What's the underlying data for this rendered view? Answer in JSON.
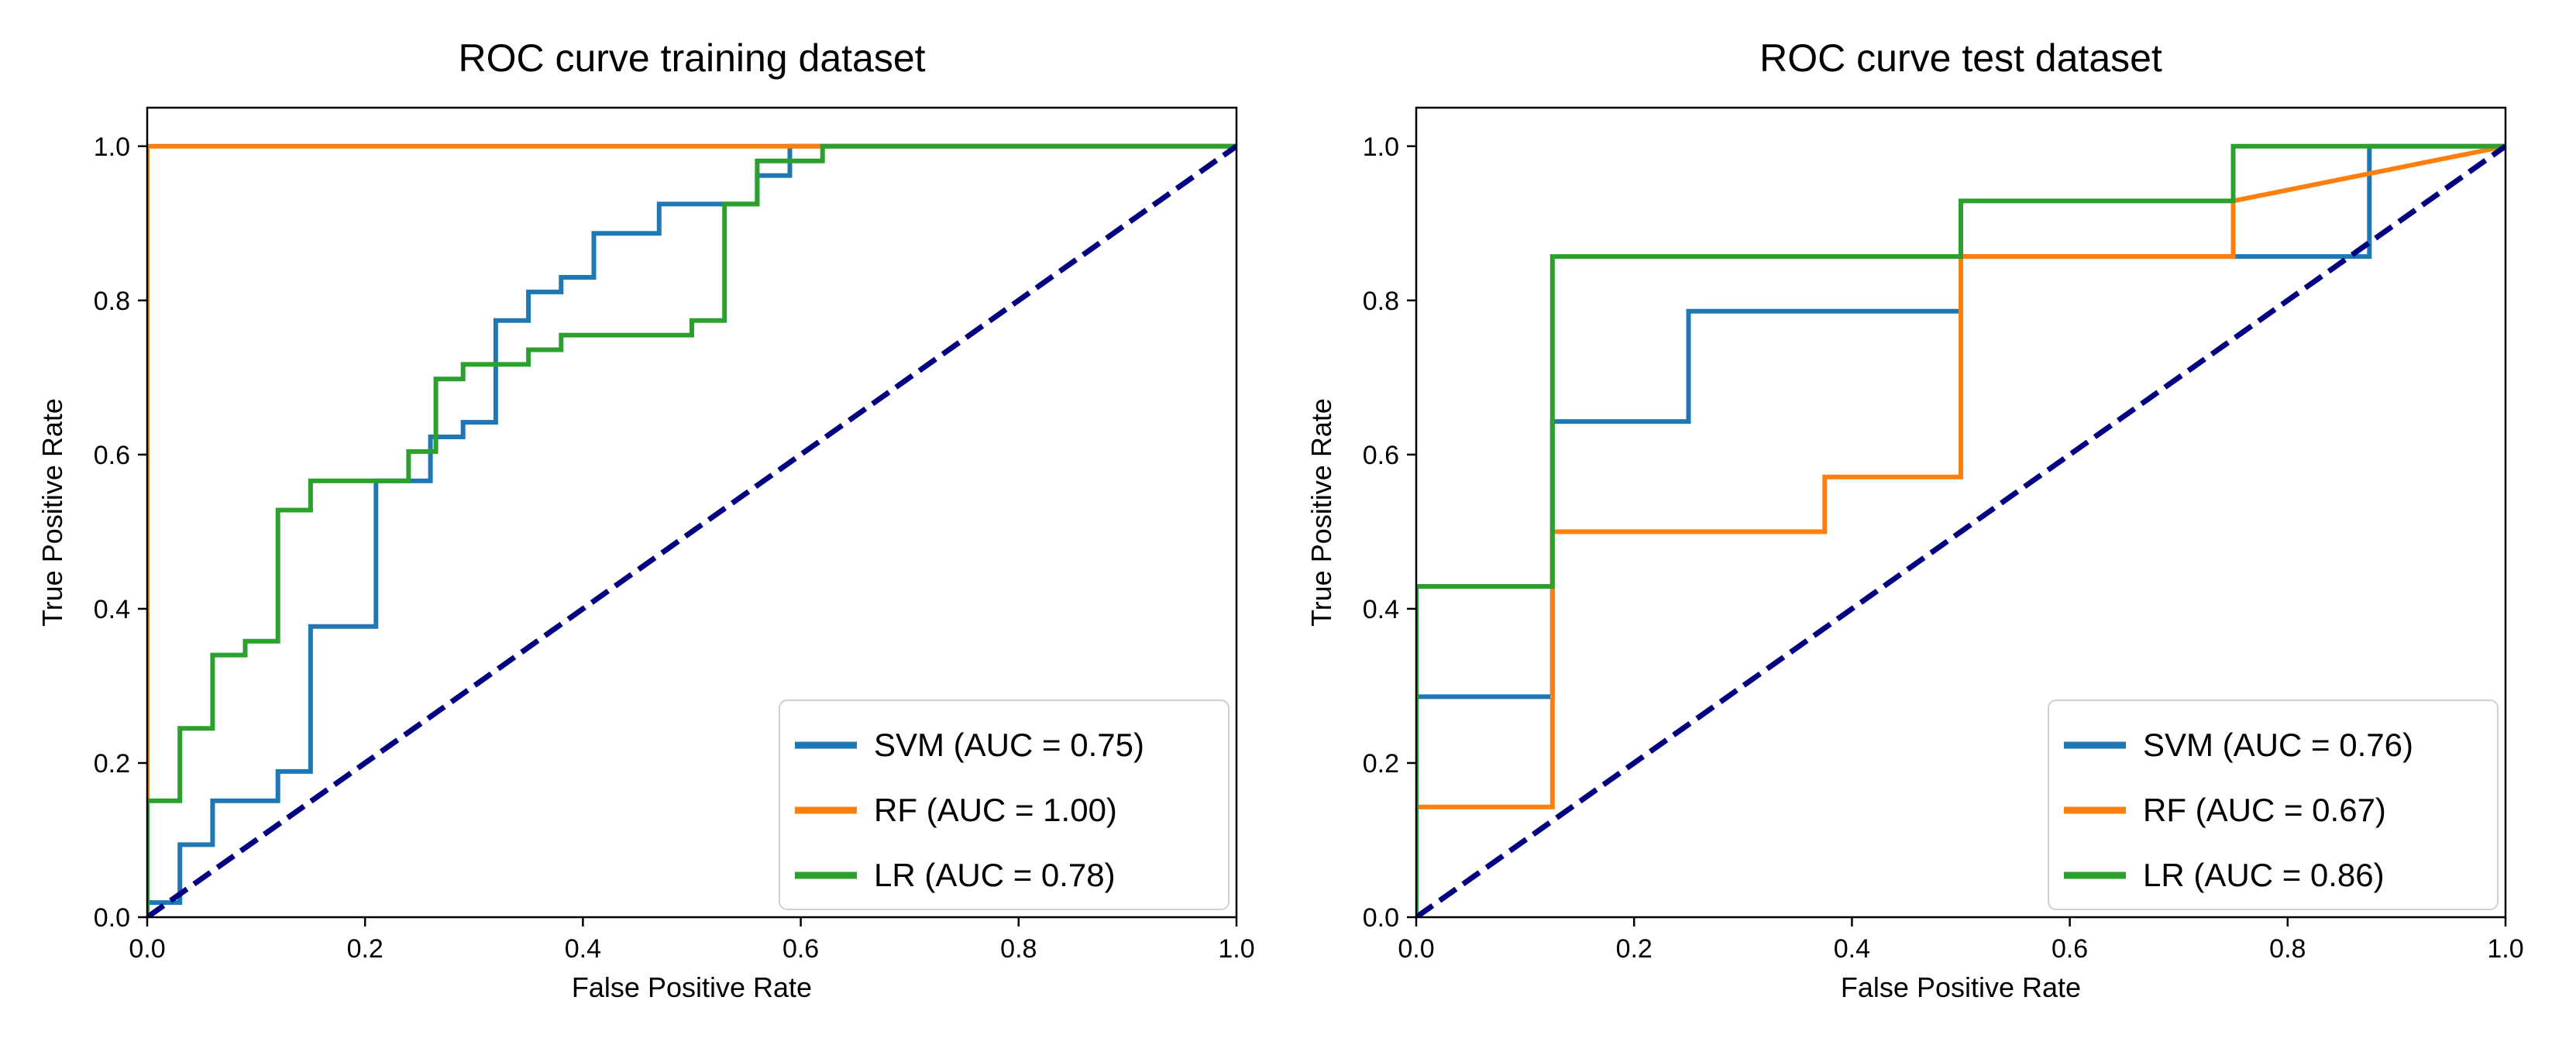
{
  "chart_data": [
    {
      "type": "line",
      "title": "ROC curve training dataset",
      "xlabel": "False Positive Rate",
      "ylabel": "True Positive Rate",
      "xlim": [
        0.0,
        1.0
      ],
      "ylim": [
        0.0,
        1.05
      ],
      "x_ticks": [
        "0.0",
        "0.2",
        "0.4",
        "0.6",
        "0.8",
        "1.0"
      ],
      "y_ticks": [
        "0.0",
        "0.2",
        "0.4",
        "0.6",
        "0.8",
        "1.0"
      ],
      "grid": false,
      "legend_position": "bottom-right",
      "series": [
        {
          "name": "SVM (AUC = 0.75)",
          "color": "#1f77b4",
          "x": [
            0,
            0,
            0.03,
            0.03,
            0.06,
            0.06,
            0.12,
            0.12,
            0.15,
            0.15,
            0.21,
            0.21,
            0.26,
            0.26,
            0.29,
            0.29,
            0.32,
            0.32,
            0.35,
            0.35,
            0.38,
            0.38,
            0.41,
            0.41,
            0.47,
            0.47,
            0.56,
            0.56,
            0.59,
            0.59,
            1.0
          ],
          "y": [
            0,
            0.019,
            0.019,
            0.094,
            0.094,
            0.151,
            0.151,
            0.189,
            0.189,
            0.377,
            0.377,
            0.566,
            0.566,
            0.623,
            0.623,
            0.642,
            0.642,
            0.774,
            0.774,
            0.811,
            0.811,
            0.83,
            0.83,
            0.887,
            0.887,
            0.925,
            0.925,
            0.962,
            0.962,
            1.0,
            1.0
          ]
        },
        {
          "name": "RF (AUC = 1.00)",
          "color": "#ff7f0e",
          "x": [
            0,
            0,
            1.0
          ],
          "y": [
            0,
            1.0,
            1.0
          ]
        },
        {
          "name": "LR (AUC = 0.78)",
          "color": "#2ca02c",
          "x": [
            0,
            0,
            0.03,
            0.03,
            0.06,
            0.06,
            0.09,
            0.09,
            0.12,
            0.12,
            0.15,
            0.15,
            0.24,
            0.24,
            0.265,
            0.265,
            0.29,
            0.29,
            0.35,
            0.35,
            0.38,
            0.38,
            0.5,
            0.5,
            0.53,
            0.53,
            0.56,
            0.56,
            0.62,
            0.62,
            1.0
          ],
          "y": [
            0,
            0.151,
            0.151,
            0.245,
            0.245,
            0.34,
            0.34,
            0.358,
            0.358,
            0.528,
            0.528,
            0.566,
            0.566,
            0.604,
            0.604,
            0.698,
            0.698,
            0.717,
            0.717,
            0.736,
            0.736,
            0.755,
            0.755,
            0.774,
            0.774,
            0.925,
            0.925,
            0.981,
            0.981,
            1.0,
            1.0
          ]
        }
      ],
      "reference_line": {
        "x": [
          0,
          1
        ],
        "y": [
          0,
          1
        ],
        "color": "#000080",
        "style": "dashed"
      }
    },
    {
      "type": "line",
      "title": "ROC curve test dataset",
      "xlabel": "False Positive Rate",
      "ylabel": "True Positive Rate",
      "xlim": [
        0.0,
        1.0
      ],
      "ylim": [
        0.0,
        1.05
      ],
      "x_ticks": [
        "0.0",
        "0.2",
        "0.4",
        "0.6",
        "0.8",
        "1.0"
      ],
      "y_ticks": [
        "0.0",
        "0.2",
        "0.4",
        "0.6",
        "0.8",
        "1.0"
      ],
      "grid": false,
      "legend_position": "bottom-right",
      "series": [
        {
          "name": "SVM (AUC = 0.76)",
          "color": "#1f77b4",
          "x": [
            0,
            0,
            0.125,
            0.125,
            0.25,
            0.25,
            0.5,
            0.5,
            0.875,
            0.875,
            1.0
          ],
          "y": [
            0,
            0.286,
            0.286,
            0.643,
            0.643,
            0.786,
            0.786,
            0.857,
            0.857,
            1.0,
            1.0
          ]
        },
        {
          "name": "RF (AUC = 0.67)",
          "color": "#ff7f0e",
          "x": [
            0,
            0,
            0.125,
            0.125,
            0.375,
            0.375,
            0.5,
            0.5,
            0.75,
            0.75,
            1.0
          ],
          "y": [
            0,
            0.143,
            0.143,
            0.5,
            0.5,
            0.571,
            0.571,
            0.857,
            0.857,
            0.929,
            1.0
          ]
        },
        {
          "name": "LR (AUC = 0.86)",
          "color": "#2ca02c",
          "x": [
            0,
            0,
            0.125,
            0.125,
            0.5,
            0.5,
            0.75,
            0.75,
            1.0
          ],
          "y": [
            0,
            0.429,
            0.429,
            0.857,
            0.857,
            0.929,
            0.929,
            1.0,
            1.0
          ]
        }
      ],
      "reference_line": {
        "x": [
          0,
          1
        ],
        "y": [
          0,
          1
        ],
        "color": "#000080",
        "style": "dashed"
      }
    }
  ]
}
